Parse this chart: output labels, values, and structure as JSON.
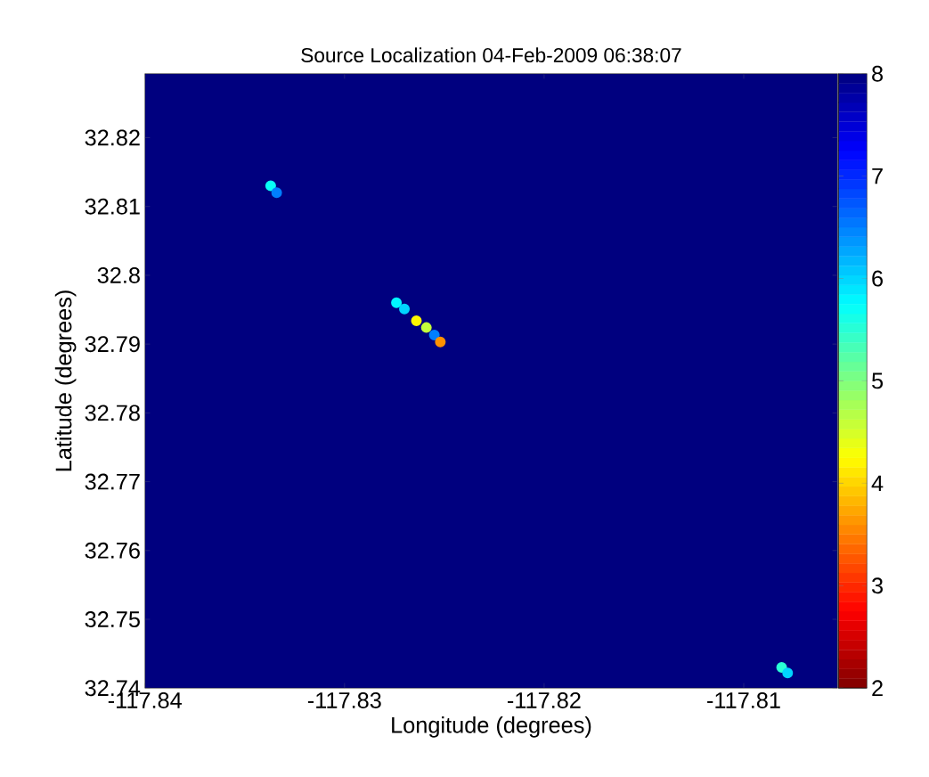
{
  "chart_data": {
    "type": "scatter",
    "title": "Source Localization  04-Feb-2009 06:38:07",
    "xlabel": "Longitude (degrees)",
    "ylabel": "Latitude (degrees)",
    "x": [
      -117.8337,
      -117.8334,
      -117.8274,
      -117.827,
      -117.8264,
      -117.8259,
      -117.8255,
      -117.8252,
      -117.8081,
      -117.8078
    ],
    "values": [
      32.813,
      32.812,
      32.796,
      32.7951,
      32.7934,
      32.7924,
      32.7913,
      32.7903,
      32.743,
      32.7422
    ],
    "cvalues": [
      5.7,
      6.5,
      5.8,
      6.0,
      4.2,
      4.6,
      6.5,
      3.6,
      5.5,
      6.0
    ],
    "marker": "circle",
    "xlim": [
      -117.84,
      -117.8053
    ],
    "ylim": [
      32.74,
      32.8293
    ],
    "xticks": [
      -117.84,
      -117.83,
      -117.82,
      -117.81
    ],
    "yticks": [
      32.74,
      32.75,
      32.76,
      32.77,
      32.78,
      32.79,
      32.8,
      32.81,
      32.82
    ],
    "clim": [
      2,
      8
    ],
    "cticks": [
      2,
      3,
      4,
      5,
      6,
      7,
      8
    ]
  }
}
